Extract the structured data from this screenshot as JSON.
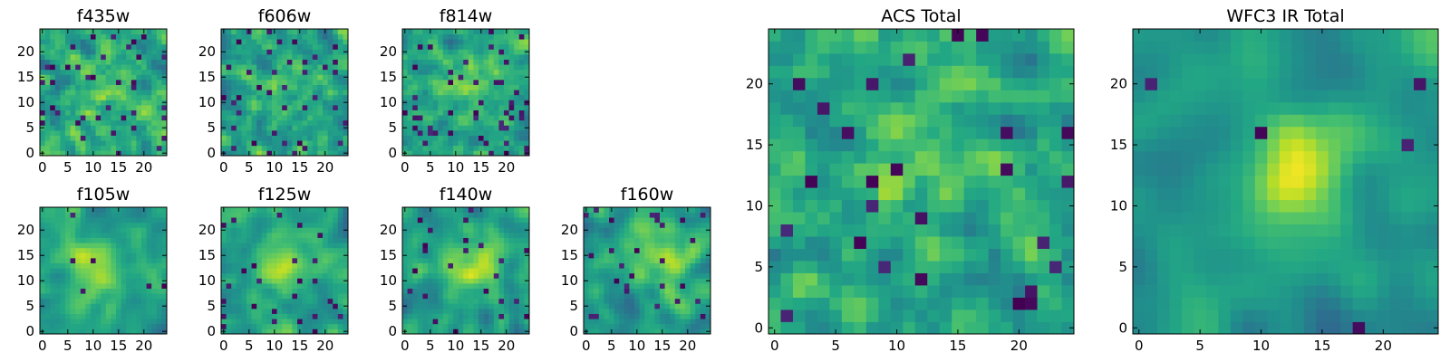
{
  "figure": {
    "colormap": "viridis",
    "colors": {
      "background": "#ffffff",
      "frame": "#000000",
      "viridis_low": "#440154",
      "viridis_high": "#fde725"
    }
  },
  "chart_data": [
    {
      "type": "heatmap",
      "title": "f435w",
      "grid": false,
      "colormap": "viridis",
      "xlim": [
        -0.5,
        24.5
      ],
      "ylim": [
        -0.5,
        24.5
      ],
      "xticks": [
        0,
        5,
        10,
        15,
        20
      ],
      "yticks": [
        0,
        5,
        10,
        15,
        20
      ],
      "shape": [
        25,
        25
      ],
      "smoothness": 0.2,
      "peak": [
        12,
        13
      ],
      "peak_strength": 0.2,
      "dark_fraction": 0.07,
      "seed": 11
    },
    {
      "type": "heatmap",
      "title": "f606w",
      "grid": false,
      "colormap": "viridis",
      "xlim": [
        -0.5,
        24.5
      ],
      "ylim": [
        -0.5,
        24.5
      ],
      "xticks": [
        0,
        5,
        10,
        15,
        20
      ],
      "yticks": [
        0,
        5,
        10,
        15,
        20
      ],
      "shape": [
        25,
        25
      ],
      "smoothness": 0.2,
      "peak": [
        12,
        13
      ],
      "peak_strength": 0.2,
      "dark_fraction": 0.06,
      "seed": 23
    },
    {
      "type": "heatmap",
      "title": "f814w",
      "grid": false,
      "colormap": "viridis",
      "xlim": [
        -0.5,
        24.5
      ],
      "ylim": [
        -0.5,
        24.5
      ],
      "xticks": [
        0,
        5,
        10,
        15,
        20
      ],
      "yticks": [
        0,
        5,
        10,
        15,
        20
      ],
      "shape": [
        25,
        25
      ],
      "smoothness": 0.25,
      "peak": [
        12,
        13
      ],
      "peak_strength": 0.25,
      "dark_fraction": 0.08,
      "seed": 37
    },
    {
      "type": "heatmap",
      "title": "f105w",
      "grid": false,
      "colormap": "viridis",
      "xlim": [
        -0.5,
        24.5
      ],
      "ylim": [
        -0.5,
        24.5
      ],
      "xticks": [
        0,
        5,
        10,
        15,
        20
      ],
      "yticks": [
        0,
        5,
        10,
        15,
        20
      ],
      "shape": [
        25,
        25
      ],
      "smoothness": 0.6,
      "peak": [
        11,
        12
      ],
      "peak_strength": 0.5,
      "dark_fraction": 0.02,
      "seed": 41
    },
    {
      "type": "heatmap",
      "title": "f125w",
      "grid": false,
      "colormap": "viridis",
      "xlim": [
        -0.5,
        24.5
      ],
      "ylim": [
        -0.5,
        24.5
      ],
      "xticks": [
        0,
        5,
        10,
        15,
        20
      ],
      "yticks": [
        0,
        5,
        10,
        15,
        20
      ],
      "shape": [
        25,
        25
      ],
      "smoothness": 0.55,
      "peak": [
        12,
        13
      ],
      "peak_strength": 0.4,
      "dark_fraction": 0.03,
      "seed": 53
    },
    {
      "type": "heatmap",
      "title": "f140w",
      "grid": false,
      "colormap": "viridis",
      "xlim": [
        -0.5,
        24.5
      ],
      "ylim": [
        -0.5,
        24.5
      ],
      "xticks": [
        0,
        5,
        10,
        15,
        20
      ],
      "yticks": [
        0,
        5,
        10,
        15,
        20
      ],
      "shape": [
        25,
        25
      ],
      "smoothness": 0.6,
      "peak": [
        14,
        14
      ],
      "peak_strength": 0.5,
      "dark_fraction": 0.03,
      "seed": 67
    },
    {
      "type": "heatmap",
      "title": "f160w",
      "grid": false,
      "colormap": "viridis",
      "xlim": [
        -0.5,
        24.5
      ],
      "ylim": [
        -0.5,
        24.5
      ],
      "xticks": [
        0,
        5,
        10,
        15,
        20
      ],
      "yticks": [
        0,
        5,
        10,
        15,
        20
      ],
      "shape": [
        25,
        25
      ],
      "smoothness": 0.6,
      "peak": [
        14,
        15
      ],
      "peak_strength": 0.5,
      "dark_fraction": 0.04,
      "seed": 79
    },
    {
      "type": "heatmap",
      "title": "ACS Total",
      "grid": false,
      "colormap": "viridis",
      "xlim": [
        -0.5,
        24.5
      ],
      "ylim": [
        -0.5,
        24.5
      ],
      "xticks": [
        0,
        5,
        10,
        15,
        20
      ],
      "yticks": [
        0,
        5,
        10,
        15,
        20
      ],
      "shape": [
        25,
        25
      ],
      "smoothness": 0.35,
      "peak": [
        13,
        16
      ],
      "peak_strength": 0.35,
      "dark_fraction": 0.05,
      "seed": 97
    },
    {
      "type": "heatmap",
      "title": "WFC3 IR Total",
      "grid": false,
      "colormap": "viridis",
      "xlim": [
        -0.5,
        24.5
      ],
      "ylim": [
        -0.5,
        24.5
      ],
      "xticks": [
        0,
        5,
        10,
        15,
        20
      ],
      "yticks": [
        0,
        5,
        10,
        15,
        20
      ],
      "shape": [
        25,
        25
      ],
      "smoothness": 0.75,
      "peak": [
        13,
        14
      ],
      "peak_strength": 0.6,
      "dark_fraction": 0.015,
      "seed": 101
    }
  ]
}
